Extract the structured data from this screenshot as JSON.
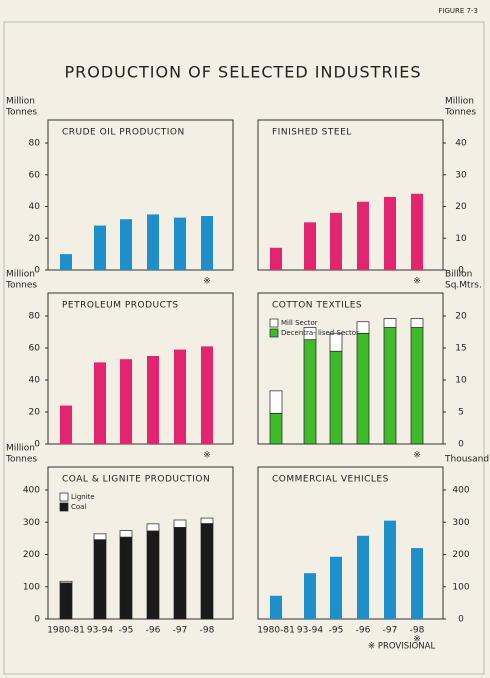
{
  "figure_label": "FIGURE 7-3",
  "title": "PRODUCTION OF SELECTED INDUSTRIES",
  "footnote": "※ PROVISIONAL",
  "chart_data": [
    {
      "type": "bar",
      "title": "CRUDE OIL PRODUCTION",
      "y_label": [
        "Million",
        "Tonnes"
      ],
      "y_axis_side": "left",
      "categories": [
        null,
        null,
        null,
        null,
        null,
        null
      ],
      "values": [
        10,
        28,
        32,
        35,
        33,
        34
      ],
      "color": "#1f8fc9",
      "ylim": [
        0,
        80
      ],
      "yticks": [
        0,
        20,
        40,
        60,
        80
      ],
      "provisional_mark": "※"
    },
    {
      "type": "bar",
      "title": "FINISHED STEEL",
      "y_label": [
        "Million",
        "Tonnes"
      ],
      "y_axis_side": "right",
      "categories": [
        null,
        null,
        null,
        null,
        null,
        null
      ],
      "values": [
        7,
        15,
        18,
        21.5,
        23,
        24
      ],
      "color": "#e3246f",
      "ylim": [
        0,
        40
      ],
      "yticks": [
        0,
        10,
        20,
        30,
        40
      ],
      "provisional_mark": "※"
    },
    {
      "type": "bar",
      "title": "PETROLEUM PRODUCTS",
      "y_label": [
        "Million",
        "Tonnes"
      ],
      "y_axis_side": "left",
      "categories": [
        null,
        null,
        null,
        null,
        null,
        null
      ],
      "values": [
        24,
        51,
        53,
        55,
        59,
        61
      ],
      "color": "#e3246f",
      "ylim": [
        0,
        80
      ],
      "yticks": [
        0,
        20,
        40,
        60,
        80
      ],
      "provisional_mark": "※"
    },
    {
      "type": "stacked_bar",
      "title": "COTTON TEXTILES",
      "y_label": [
        "Billion",
        "Sq.Mtrs."
      ],
      "y_axis_side": "right",
      "categories": [
        null,
        null,
        null,
        null,
        null,
        null
      ],
      "series": [
        {
          "name": "Decentra- lised Sector",
          "color": "#3dbb2a",
          "values": [
            4.8,
            16.3,
            14.5,
            17.3,
            18.2,
            18.2
          ]
        },
        {
          "name": "Mill Sector",
          "color": "#ffffff",
          "values": [
            3.5,
            1.9,
            2.8,
            1.8,
            1.4,
            1.4
          ]
        }
      ],
      "ylim": [
        0,
        20
      ],
      "yticks": [
        0,
        5,
        10,
        15,
        20
      ],
      "provisional_mark": "※"
    },
    {
      "type": "stacked_bar",
      "title": "COAL & LIGNITE PRODUCTION",
      "y_label": [
        "Million",
        "Tonnes"
      ],
      "y_axis_side": "left",
      "categories": [
        "1980-81",
        "93-94",
        "-95",
        "-96",
        "-97",
        "-98"
      ],
      "series": [
        {
          "name": "Coal",
          "color": "#1a1a1a",
          "values": [
            112,
            246,
            254,
            273,
            284,
            296
          ]
        },
        {
          "name": "Lignite",
          "color": "#ffffff",
          "values": [
            5,
            18,
            20,
            22,
            23,
            17
          ]
        }
      ],
      "ylim": [
        0,
        400
      ],
      "yticks": [
        0,
        100,
        200,
        300,
        400
      ]
    },
    {
      "type": "bar",
      "title": "COMMERCIAL VEHICLES",
      "y_label": [
        "Thousand"
      ],
      "y_axis_side": "right",
      "categories": [
        "1980-81",
        "93-94",
        "-95",
        "-96",
        "-97",
        "-98"
      ],
      "values": [
        72,
        142,
        193,
        258,
        305,
        220
      ],
      "color": "#1f8fc9",
      "ylim": [
        0,
        400
      ],
      "yticks": [
        0,
        100,
        200,
        300,
        400
      ],
      "provisional_mark": "※"
    }
  ]
}
